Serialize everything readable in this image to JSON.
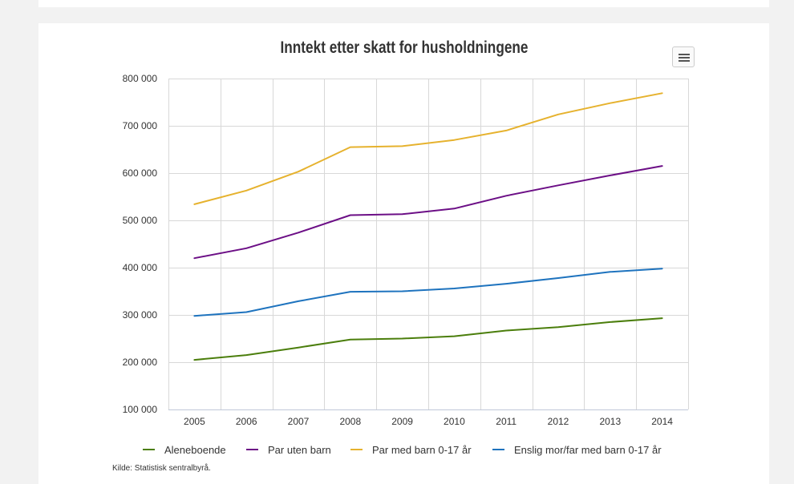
{
  "chart_data": {
    "type": "line",
    "title": "Inntekt etter skatt for husholdningene",
    "x": [
      "2005",
      "2006",
      "2007",
      "2008",
      "2009",
      "2010",
      "2011",
      "2012",
      "2013",
      "2014"
    ],
    "ylim": [
      100000,
      800000
    ],
    "yticks": [
      "100 000",
      "200 000",
      "300 000",
      "400 000",
      "500 000",
      "600 000",
      "700 000",
      "800 000"
    ],
    "ytick_values": [
      100000,
      200000,
      300000,
      400000,
      500000,
      600000,
      700000,
      800000
    ],
    "grid": true,
    "legend_position": "bottom",
    "series": [
      {
        "name": "Aleneboende",
        "color": "#4b7e0c",
        "values": [
          205000,
          215000,
          231000,
          248000,
          250000,
          255000,
          267000,
          274000,
          285000,
          293000
        ]
      },
      {
        "name": "Par uten barn",
        "color": "#6c0f86",
        "values": [
          420000,
          441000,
          474000,
          511000,
          513000,
          525000,
          552000,
          574000,
          595000,
          615000
        ]
      },
      {
        "name": "Par med barn 0-17 år",
        "color": "#e6b22e",
        "values": [
          534000,
          563000,
          603000,
          655000,
          657000,
          670000,
          690000,
          724000,
          748000,
          769000
        ]
      },
      {
        "name": "Enslig mor/far med barn 0-17 år",
        "color": "#1e73be",
        "values": [
          298000,
          306000,
          329000,
          349000,
          350000,
          356000,
          366000,
          378000,
          391000,
          398000
        ]
      }
    ],
    "source": "Kilde: Statistisk sentralbyrå."
  }
}
